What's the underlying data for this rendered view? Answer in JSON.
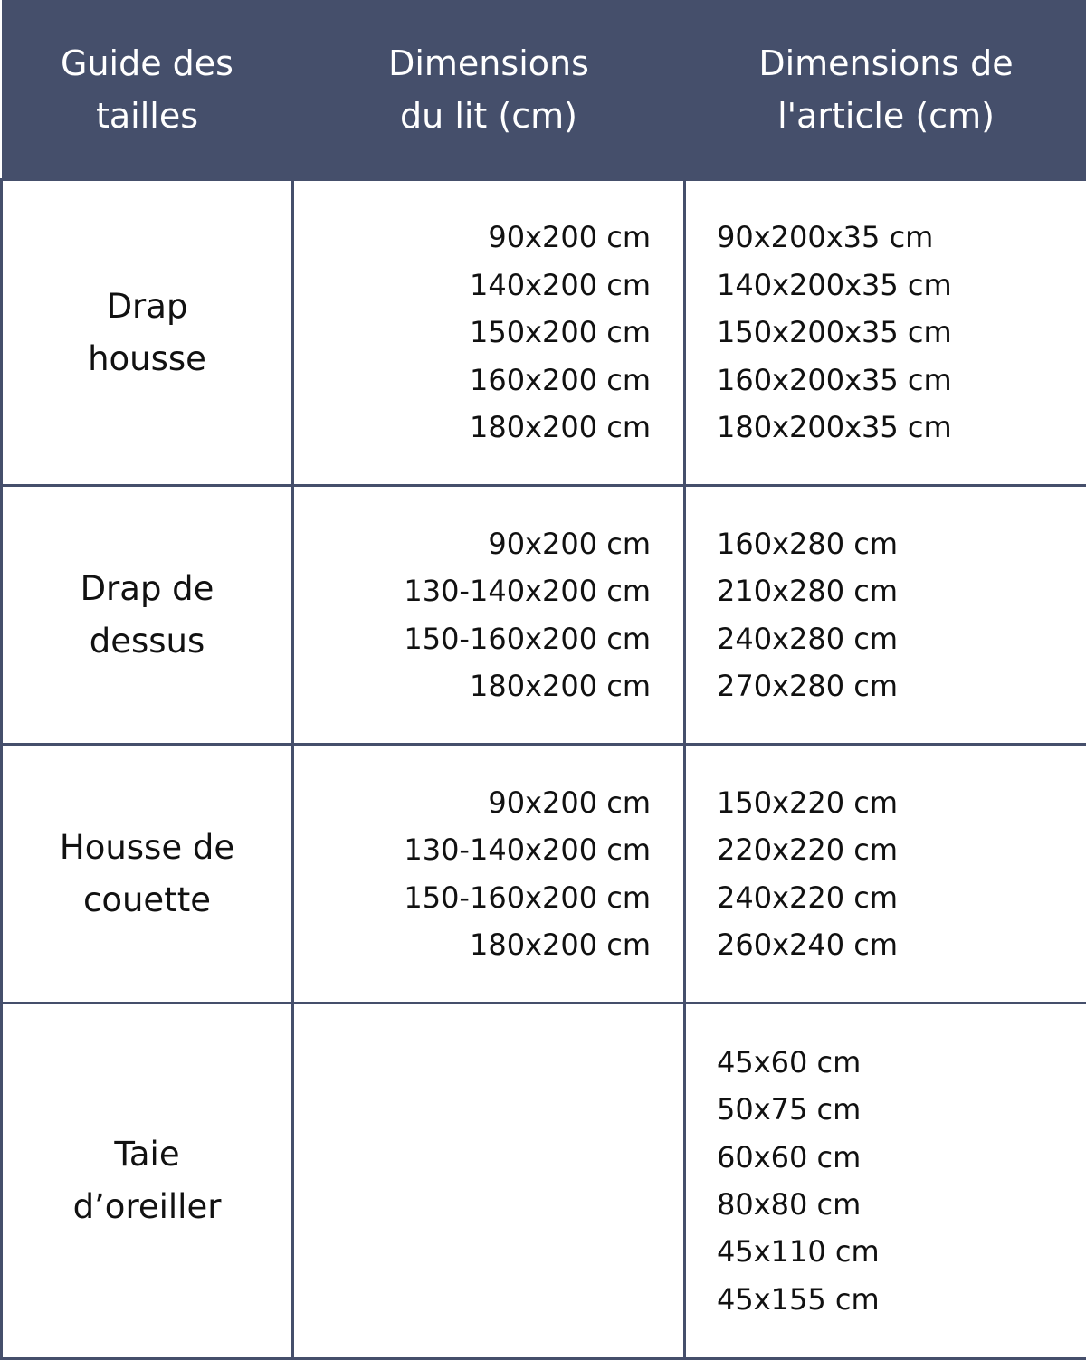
{
  "header": {
    "col1": [
      "Guide des",
      "tailles"
    ],
    "col2": [
      "Dimensions",
      "du lit (cm)"
    ],
    "col3": [
      "Dimensions de",
      "l'article (cm)"
    ]
  },
  "rows": [
    {
      "category": [
        "Drap",
        "housse"
      ],
      "bed": [
        "90x200 cm",
        "140x200 cm",
        "150x200 cm",
        "160x200 cm",
        "180x200 cm"
      ],
      "item": [
        "90x200x35 cm",
        "140x200x35 cm",
        "150x200x35 cm",
        "160x200x35 cm",
        "180x200x35 cm"
      ]
    },
    {
      "category": [
        "Drap de",
        "dessus"
      ],
      "bed": [
        "90x200 cm",
        "130-140x200 cm",
        "150-160x200 cm",
        "180x200 cm"
      ],
      "item": [
        "160x280 cm",
        "210x280 cm",
        "240x280 cm",
        "270x280 cm"
      ]
    },
    {
      "category": [
        "Housse de",
        "couette"
      ],
      "bed": [
        "90x200 cm",
        "130-140x200 cm",
        "150-160x200 cm",
        "180x200 cm"
      ],
      "item": [
        "150x220 cm",
        "220x220 cm",
        "240x220 cm",
        "260x240 cm"
      ]
    },
    {
      "category": [
        "Taie",
        "d’oreiller"
      ],
      "bed": [],
      "item": [
        "45x60 cm",
        "50x75 cm",
        "60x60 cm",
        "80x80 cm",
        "45x110 cm",
        "45x155 cm"
      ]
    }
  ],
  "colors": {
    "header_bg": "#454f6b",
    "border": "#454f6b",
    "header_text": "#ffffff"
  }
}
